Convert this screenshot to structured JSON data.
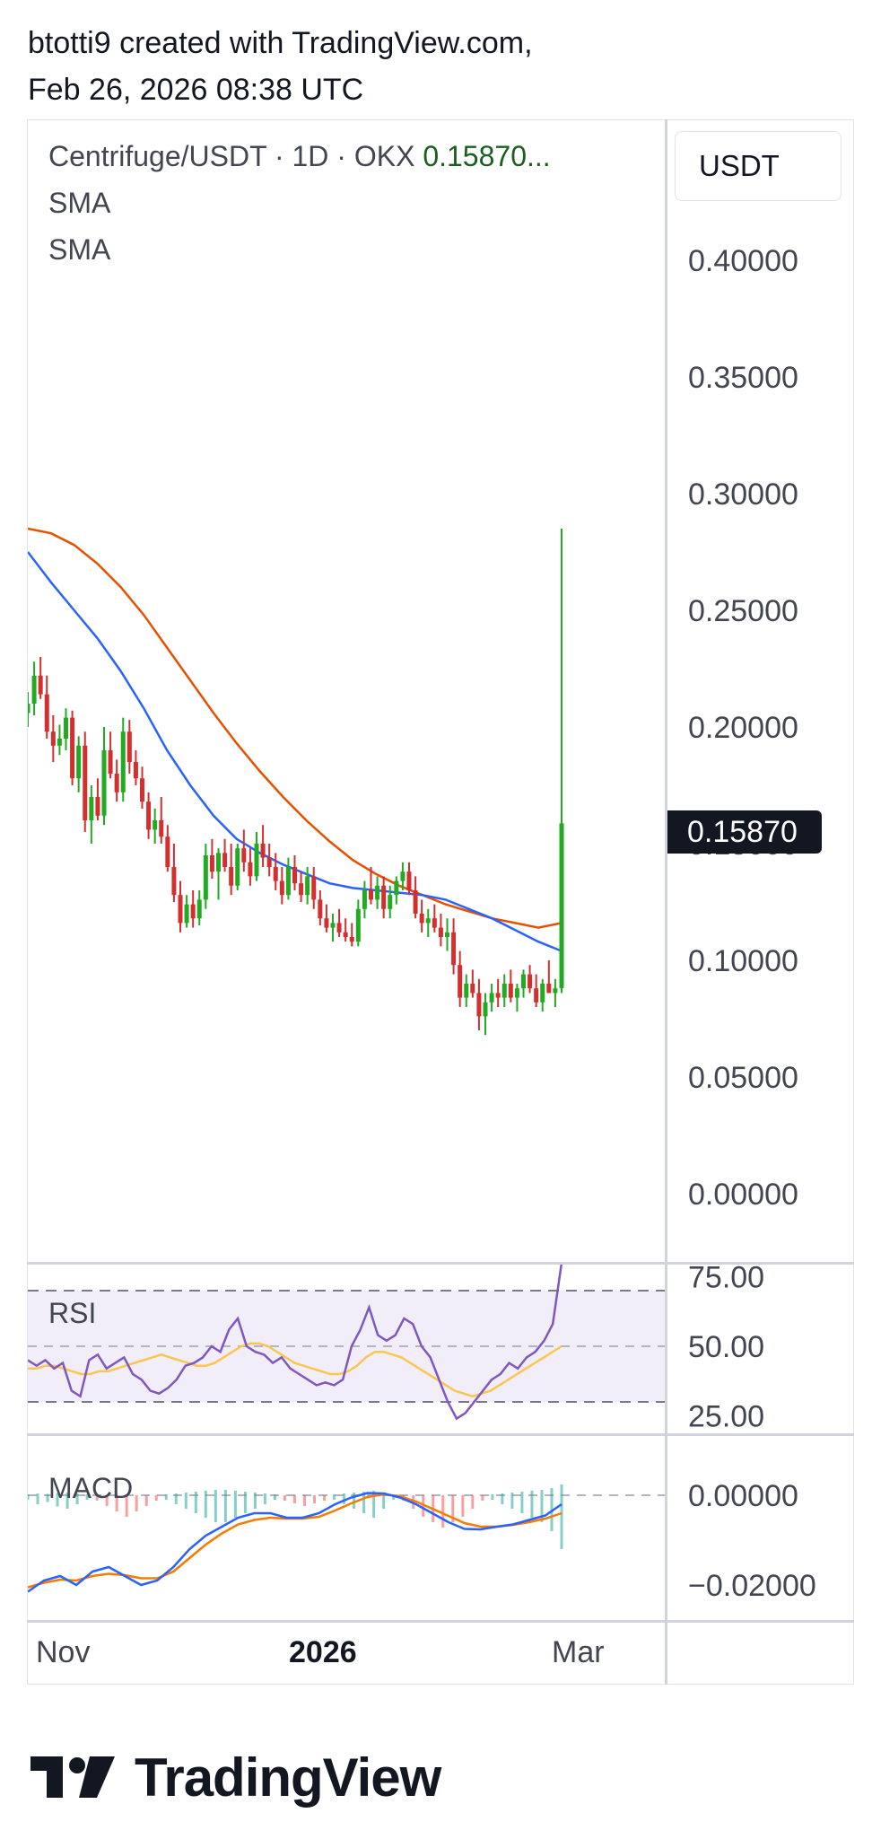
{
  "header": {
    "line1": "btotti9 created with TradingView.com,",
    "line2": "Feb 26, 2026 08:38 UTC"
  },
  "legend": {
    "symbol": "Centrifuge/USDT · 1D · OKX",
    "price": "0.15870...",
    "sma1": "SMA",
    "sma2": "SMA"
  },
  "currency_button": "USDT",
  "price_tag": "0.15870",
  "colors": {
    "up": "#22ab22",
    "down": "#d32f2f",
    "sma_fast": "#2962ff",
    "sma_slow": "#e65100",
    "rsi": "#7e57c2",
    "rsi_ma": "#f9c74f",
    "macd": "#2962ff",
    "signal": "#f57c00"
  },
  "chart_data": [
    {
      "type": "candlestick",
      "title": "Centrifuge/USDT · 1D · OKX",
      "y_ticks": [
        "0.40000",
        "0.35000",
        "0.30000",
        "0.25000",
        "0.20000",
        "0.15000",
        "0.10000",
        "0.05000",
        "0.00000"
      ],
      "ylim": [
        0.0,
        0.4
      ],
      "x_ticks": [
        "Nov",
        "2026",
        "Mar"
      ],
      "last_price": 0.1587,
      "candles": [
        [
          0.206,
          0.215,
          0.2,
          0.21
        ],
        [
          0.21,
          0.228,
          0.205,
          0.222
        ],
        [
          0.222,
          0.23,
          0.212,
          0.214
        ],
        [
          0.214,
          0.222,
          0.195,
          0.198
        ],
        [
          0.198,
          0.205,
          0.185,
          0.192
        ],
        [
          0.192,
          0.201,
          0.188,
          0.195
        ],
        [
          0.195,
          0.208,
          0.19,
          0.204
        ],
        [
          0.204,
          0.207,
          0.175,
          0.178
        ],
        [
          0.178,
          0.196,
          0.172,
          0.192
        ],
        [
          0.192,
          0.198,
          0.155,
          0.16
        ],
        [
          0.16,
          0.175,
          0.15,
          0.17
        ],
        [
          0.17,
          0.178,
          0.16,
          0.162
        ],
        [
          0.162,
          0.2,
          0.158,
          0.19
        ],
        [
          0.19,
          0.198,
          0.178,
          0.18
        ],
        [
          0.18,
          0.186,
          0.168,
          0.172
        ],
        [
          0.172,
          0.204,
          0.168,
          0.198
        ],
        [
          0.198,
          0.203,
          0.18,
          0.185
        ],
        [
          0.185,
          0.19,
          0.175,
          0.178
        ],
        [
          0.178,
          0.183,
          0.165,
          0.168
        ],
        [
          0.168,
          0.172,
          0.152,
          0.156
        ],
        [
          0.156,
          0.165,
          0.15,
          0.16
        ],
        [
          0.16,
          0.17,
          0.15,
          0.153
        ],
        [
          0.153,
          0.158,
          0.138,
          0.14
        ],
        [
          0.14,
          0.15,
          0.125,
          0.128
        ],
        [
          0.128,
          0.134,
          0.112,
          0.116
        ],
        [
          0.116,
          0.128,
          0.114,
          0.124
        ],
        [
          0.124,
          0.13,
          0.114,
          0.118
        ],
        [
          0.118,
          0.13,
          0.115,
          0.126
        ],
        [
          0.126,
          0.15,
          0.122,
          0.145
        ],
        [
          0.145,
          0.152,
          0.135,
          0.138
        ],
        [
          0.138,
          0.148,
          0.126,
          0.146
        ],
        [
          0.146,
          0.152,
          0.138,
          0.14
        ],
        [
          0.14,
          0.15,
          0.128,
          0.132
        ],
        [
          0.132,
          0.15,
          0.13,
          0.148
        ],
        [
          0.148,
          0.156,
          0.138,
          0.142
        ],
        [
          0.142,
          0.148,
          0.132,
          0.136
        ],
        [
          0.136,
          0.155,
          0.134,
          0.15
        ],
        [
          0.15,
          0.158,
          0.14,
          0.144
        ],
        [
          0.144,
          0.15,
          0.136,
          0.14
        ],
        [
          0.14,
          0.146,
          0.13,
          0.134
        ],
        [
          0.134,
          0.14,
          0.124,
          0.128
        ],
        [
          0.128,
          0.144,
          0.126,
          0.14
        ],
        [
          0.14,
          0.145,
          0.13,
          0.133
        ],
        [
          0.133,
          0.138,
          0.125,
          0.128
        ],
        [
          0.128,
          0.14,
          0.124,
          0.136
        ],
        [
          0.136,
          0.14,
          0.122,
          0.126
        ],
        [
          0.126,
          0.13,
          0.115,
          0.118
        ],
        [
          0.118,
          0.124,
          0.112,
          0.114
        ],
        [
          0.114,
          0.12,
          0.108,
          0.116
        ],
        [
          0.116,
          0.122,
          0.11,
          0.112
        ],
        [
          0.112,
          0.118,
          0.108,
          0.11
        ],
        [
          0.11,
          0.116,
          0.106,
          0.108
        ],
        [
          0.108,
          0.126,
          0.106,
          0.122
        ],
        [
          0.122,
          0.134,
          0.118,
          0.13
        ],
        [
          0.13,
          0.14,
          0.124,
          0.126
        ],
        [
          0.126,
          0.136,
          0.122,
          0.132
        ],
        [
          0.132,
          0.136,
          0.118,
          0.122
        ],
        [
          0.122,
          0.132,
          0.118,
          0.128
        ],
        [
          0.128,
          0.136,
          0.124,
          0.134
        ],
        [
          0.134,
          0.142,
          0.13,
          0.138
        ],
        [
          0.138,
          0.142,
          0.128,
          0.13
        ],
        [
          0.13,
          0.136,
          0.118,
          0.12
        ],
        [
          0.12,
          0.126,
          0.112,
          0.116
        ],
        [
          0.116,
          0.122,
          0.11,
          0.118
        ],
        [
          0.118,
          0.124,
          0.112,
          0.114
        ],
        [
          0.114,
          0.12,
          0.106,
          0.11
        ],
        [
          0.11,
          0.118,
          0.104,
          0.112
        ],
        [
          0.112,
          0.118,
          0.094,
          0.098
        ],
        [
          0.098,
          0.104,
          0.08,
          0.084
        ],
        [
          0.084,
          0.094,
          0.08,
          0.09
        ],
        [
          0.09,
          0.096,
          0.084,
          0.086
        ],
        [
          0.086,
          0.092,
          0.07,
          0.076
        ],
        [
          0.076,
          0.086,
          0.068,
          0.082
        ],
        [
          0.082,
          0.09,
          0.078,
          0.086
        ],
        [
          0.086,
          0.092,
          0.08,
          0.084
        ],
        [
          0.084,
          0.094,
          0.08,
          0.09
        ],
        [
          0.09,
          0.096,
          0.082,
          0.084
        ],
        [
          0.084,
          0.09,
          0.078,
          0.088
        ],
        [
          0.088,
          0.096,
          0.084,
          0.094
        ],
        [
          0.094,
          0.098,
          0.086,
          0.088
        ],
        [
          0.088,
          0.094,
          0.08,
          0.082
        ],
        [
          0.082,
          0.092,
          0.078,
          0.09
        ],
        [
          0.09,
          0.1,
          0.086,
          0.086
        ],
        [
          0.086,
          0.092,
          0.08,
          0.088
        ],
        [
          0.088,
          0.285,
          0.086,
          0.1587
        ]
      ],
      "sma_fast": [
        0.275,
        0.262,
        0.25,
        0.238,
        0.224,
        0.208,
        0.19,
        0.175,
        0.162,
        0.152,
        0.146,
        0.141,
        0.137,
        0.133,
        0.131,
        0.13,
        0.129,
        0.128,
        0.126,
        0.122,
        0.118,
        0.113,
        0.108,
        0.104
      ],
      "sma_slow": [
        0.285,
        0.283,
        0.278,
        0.27,
        0.26,
        0.248,
        0.234,
        0.22,
        0.206,
        0.193,
        0.181,
        0.17,
        0.16,
        0.151,
        0.143,
        0.137,
        0.132,
        0.128,
        0.124,
        0.121,
        0.118,
        0.116,
        0.114,
        0.116
      ]
    },
    {
      "type": "line",
      "title": "RSI",
      "y_ticks": [
        "75.00",
        "50.00",
        "25.00"
      ],
      "ylim": [
        24,
        76
      ],
      "bands": [
        70,
        30
      ],
      "rsi": [
        45,
        43,
        45,
        42,
        44,
        34,
        32,
        45,
        47,
        42,
        44,
        46,
        40,
        38,
        34,
        33,
        35,
        38,
        43,
        44,
        46,
        50,
        48,
        56,
        60,
        50,
        48,
        47,
        44,
        46,
        42,
        40,
        38,
        36,
        37,
        36,
        38,
        50,
        56,
        64,
        54,
        52,
        54,
        60,
        58,
        50,
        46,
        38,
        30,
        24,
        26,
        30,
        34,
        38,
        40,
        44,
        42,
        46,
        48,
        52,
        58,
        80
      ],
      "rsi_ma": [
        42,
        42,
        43,
        43,
        42,
        41,
        40,
        40,
        41,
        41,
        42,
        43,
        44,
        45,
        46,
        47,
        46,
        45,
        44,
        43,
        43,
        44,
        46,
        48,
        50,
        51,
        51,
        50,
        48,
        46,
        44,
        43,
        42,
        41,
        40,
        40,
        41,
        43,
        46,
        48,
        48,
        47,
        46,
        44,
        42,
        40,
        38,
        36,
        34,
        33,
        32,
        33,
        34,
        36,
        38,
        40,
        42,
        44,
        46,
        48,
        50
      ]
    },
    {
      "type": "line",
      "title": "MACD",
      "y_ticks": [
        "0.00000",
        "−0.02000"
      ],
      "ylim": [
        -0.024,
        0.003
      ],
      "macd": [
        -0.0215,
        -0.019,
        -0.018,
        -0.02,
        -0.017,
        -0.016,
        -0.018,
        -0.02,
        -0.019,
        -0.016,
        -0.012,
        -0.009,
        -0.007,
        -0.005,
        -0.004,
        -0.004,
        -0.005,
        -0.005,
        -0.004,
        -0.002,
        -0.0005,
        0.0005,
        0.0004,
        -0.0005,
        -0.002,
        -0.004,
        -0.006,
        -0.0075,
        -0.0076,
        -0.007,
        -0.0065,
        -0.0055,
        -0.0045,
        -0.002
      ],
      "signal": [
        -0.0205,
        -0.0195,
        -0.0188,
        -0.019,
        -0.018,
        -0.0175,
        -0.0178,
        -0.0185,
        -0.0185,
        -0.017,
        -0.014,
        -0.011,
        -0.0085,
        -0.0065,
        -0.0055,
        -0.005,
        -0.0052,
        -0.0052,
        -0.0048,
        -0.0034,
        -0.0018,
        -0.0004,
        0.0002,
        -0.0002,
        -0.0014,
        -0.003,
        -0.0046,
        -0.0062,
        -0.007,
        -0.007,
        -0.0066,
        -0.006,
        -0.0052,
        -0.004
      ],
      "histogram": [
        0.0002,
        0.0004,
        0.0003,
        0.0005,
        0.0006,
        0.0004,
        0.0002,
        -0.0002,
        -0.0004,
        -0.0006,
        -0.0008,
        -0.0006,
        -0.0004,
        -0.0002,
        0.0002,
        0.0004,
        0.0006,
        0.0008,
        0.001,
        0.0012,
        0.0012,
        0.001,
        0.0008,
        0.0006,
        0.0004,
        0.0002,
        -0.0002,
        -0.0003,
        -0.0004,
        -0.0003,
        -0.0002,
        0.0002,
        0.0004,
        0.0006,
        0.0008,
        0.001,
        0.0006,
        0.0002,
        -0.0002,
        -0.0005,
        -0.0008,
        -0.001,
        -0.0012,
        -0.001,
        -0.0008,
        -0.0005,
        -0.0002,
        0.0002,
        0.0004,
        0.0006,
        0.0008,
        0.001,
        0.0012,
        0.0016,
        0.0024
      ]
    }
  ],
  "brand": "TradingView"
}
